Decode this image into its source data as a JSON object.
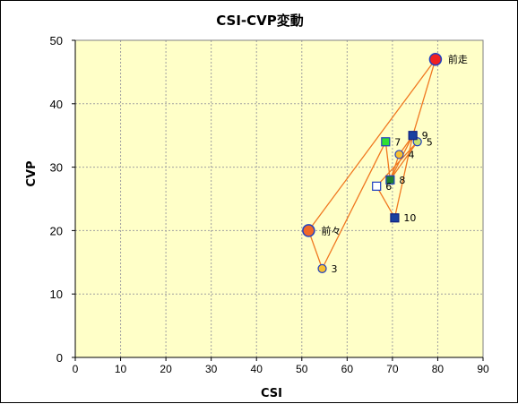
{
  "chart_data": {
    "type": "scatter",
    "title": "CSI-CVP変動",
    "xlabel": "CSI",
    "ylabel": "CVP",
    "xlim": [
      0,
      90
    ],
    "ylim": [
      0,
      50
    ],
    "x_ticks": [
      0,
      10,
      20,
      30,
      40,
      50,
      60,
      70,
      80,
      90
    ],
    "y_ticks": [
      0,
      10,
      20,
      30,
      40,
      50
    ],
    "grid": true,
    "plot_background": "#ffffc8",
    "line_color": "#f07820",
    "points": [
      {
        "label": "前々",
        "x": 51.5,
        "y": 20,
        "marker": "circle-large",
        "fill": "#f06828",
        "stroke": "#2040c0"
      },
      {
        "label": "3",
        "x": 54.5,
        "y": 14,
        "marker": "circle",
        "fill": "#f8c030",
        "stroke": "#2040c0"
      },
      {
        "label": "4",
        "x": 71.5,
        "y": 32,
        "marker": "circle",
        "fill": "#f8c030",
        "stroke": "#2040c0"
      },
      {
        "label": "5",
        "x": 75.5,
        "y": 34,
        "marker": "circle",
        "fill": "#c8e070",
        "stroke": "#2040c0"
      },
      {
        "label": "6",
        "x": 66.5,
        "y": 27,
        "marker": "square",
        "fill": "#ffffff",
        "stroke": "#2040c0"
      },
      {
        "label": "7",
        "x": 68.5,
        "y": 34,
        "marker": "square",
        "fill": "#30e030",
        "stroke": "#2040c0"
      },
      {
        "label": "8",
        "x": 69.5,
        "y": 28,
        "marker": "square",
        "fill": "#208030",
        "stroke": "#2040c0"
      },
      {
        "label": "9",
        "x": 74.5,
        "y": 35,
        "marker": "square",
        "fill": "#1840a0",
        "stroke": "#102080"
      },
      {
        "label": "10",
        "x": 70.5,
        "y": 22,
        "marker": "square",
        "fill": "#1840a0",
        "stroke": "#102080"
      },
      {
        "label": "前走",
        "x": 79.5,
        "y": 47,
        "marker": "circle-large",
        "fill": "#f02020",
        "stroke": "#2040c0"
      }
    ],
    "path_order": [
      "前々",
      "3",
      "7",
      "8",
      "9",
      "4",
      "8",
      "5",
      "6",
      "10",
      "9",
      "前走",
      "前々"
    ]
  }
}
